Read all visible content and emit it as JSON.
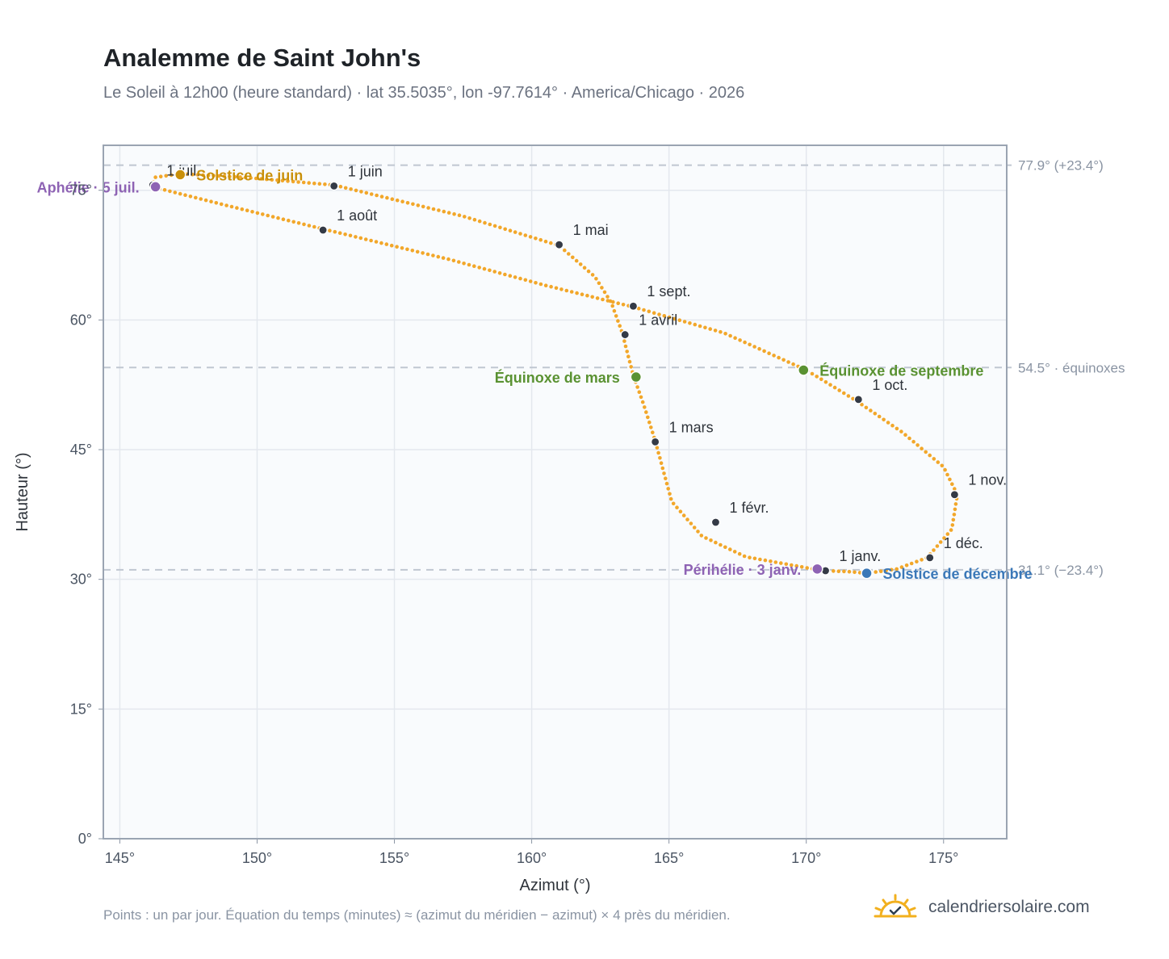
{
  "header": {
    "title": "Analemme de Saint John's",
    "subtitle": "Le Soleil à 12h00 (heure standard) · lat 35.5035°, lon -97.7614° · America/Chicago · 2026"
  },
  "footer": {
    "note": "Points : un par jour. Équation du temps (minutes) ≈ (azimut du méridien − azimut) × 4 près du méridien.",
    "brand": "calendriersolaire.com",
    "brand_icon": "sun-icon"
  },
  "colors": {
    "curve": "#f2a72a",
    "month_marker": "#343a46",
    "solstice_june": "#c9900a",
    "solstice_december": "#3b78b8",
    "equinox": "#5a9232",
    "perihelion_aphelion": "#8e63b4",
    "reference_line": "#c0c7d1",
    "plot_background": "#f9fbfd",
    "grid": "#e4e8ee"
  },
  "chart_data": {
    "type": "scatter",
    "xlabel": "Azimut (°)",
    "ylabel": "Hauteur (°)",
    "xlim": [
      144.4,
      177.3
    ],
    "ylim": [
      0,
      80.2
    ],
    "x_ticks": [
      "145°",
      "150°",
      "155°",
      "160°",
      "165°",
      "170°",
      "175°"
    ],
    "x_tick_values": [
      145,
      150,
      155,
      160,
      165,
      170,
      175
    ],
    "y_ticks": [
      "0°",
      "15°",
      "30°",
      "45°",
      "60°",
      "75°"
    ],
    "y_tick_values": [
      0,
      15,
      30,
      45,
      60,
      75
    ],
    "grid": true,
    "reference_lines": [
      {
        "y": 77.9,
        "label": "77.9° (+23.4°)"
      },
      {
        "y": 54.5,
        "label": "54.5° · équinoxes"
      },
      {
        "y": 31.1,
        "label": "31.1° (−23.4°)"
      }
    ],
    "series_path": [
      [
        170.6,
        31.0
      ],
      [
        167.8,
        32.6
      ],
      [
        166.2,
        35.0
      ],
      [
        165.1,
        39.0
      ],
      [
        164.5,
        46.0
      ],
      [
        164.1,
        50.0
      ],
      [
        163.7,
        53.6
      ],
      [
        163.5,
        56.0
      ],
      [
        163.3,
        58.5
      ],
      [
        162.9,
        62.0
      ],
      [
        162.3,
        65.0
      ],
      [
        161.0,
        68.6
      ],
      [
        157.5,
        72.0
      ],
      [
        152.8,
        75.6
      ],
      [
        149.5,
        76.5
      ],
      [
        147.2,
        76.9
      ],
      [
        146.3,
        76.5
      ],
      [
        146.2,
        75.8
      ],
      [
        146.3,
        75.3
      ],
      [
        149.2,
        73.0
      ],
      [
        152.3,
        70.6
      ],
      [
        157.0,
        67.0
      ],
      [
        160.5,
        64.0
      ],
      [
        163.7,
        61.5
      ],
      [
        167.0,
        58.5
      ],
      [
        170.0,
        54.2
      ],
      [
        171.8,
        50.7
      ],
      [
        173.5,
        47.0
      ],
      [
        175.0,
        43.0
      ],
      [
        175.5,
        39.8
      ],
      [
        175.3,
        35.8
      ],
      [
        174.4,
        32.5
      ],
      [
        173.3,
        31.2
      ],
      [
        172.2,
        30.7
      ],
      [
        171.5,
        30.9
      ],
      [
        170.6,
        31.0
      ]
    ],
    "month_markers": [
      {
        "label": "1 janv.",
        "x": 170.7,
        "y": 31.0
      },
      {
        "label": "1 févr.",
        "x": 166.7,
        "y": 36.6
      },
      {
        "label": "1 mars",
        "x": 164.5,
        "y": 45.9
      },
      {
        "label": "1 avril",
        "x": 163.4,
        "y": 58.3
      },
      {
        "label": "1 mai",
        "x": 161.0,
        "y": 68.7
      },
      {
        "label": "1 juin",
        "x": 152.8,
        "y": 75.5
      },
      {
        "label": "1 juil.",
        "x": 146.2,
        "y": 75.6
      },
      {
        "label": "1 août",
        "x": 152.4,
        "y": 70.4
      },
      {
        "label": "1 sept.",
        "x": 163.7,
        "y": 61.6
      },
      {
        "label": "1 oct.",
        "x": 171.9,
        "y": 50.8
      },
      {
        "label": "1 nov.",
        "x": 175.4,
        "y": 39.8
      },
      {
        "label": "1 déc.",
        "x": 174.5,
        "y": 32.5
      }
    ],
    "key_points": [
      {
        "label": "Solstice de juin",
        "x": 147.2,
        "y": 76.8,
        "kind": "solstice_june"
      },
      {
        "label": "Aphélie · 5 juil.",
        "x": 146.3,
        "y": 75.4,
        "kind": "perihelion_aphelion"
      },
      {
        "label": "Équinoxe de mars",
        "x": 163.8,
        "y": 53.4,
        "kind": "equinox"
      },
      {
        "label": "Équinoxe de septembre",
        "x": 169.9,
        "y": 54.2,
        "kind": "equinox"
      },
      {
        "label": "Périhélie · 3 janv.",
        "x": 170.4,
        "y": 31.2,
        "kind": "perihelion_aphelion"
      },
      {
        "label": "Solstice de décembre",
        "x": 172.2,
        "y": 30.7,
        "kind": "solstice_december"
      }
    ]
  }
}
